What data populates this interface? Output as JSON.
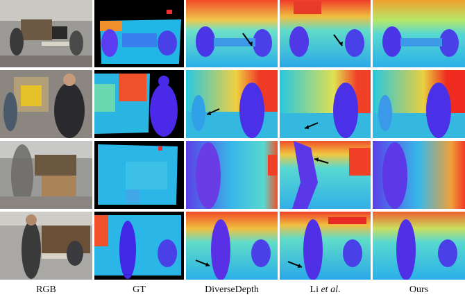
{
  "columns": {
    "rgb": "RGB",
    "gt": "GT",
    "diversedepth": "DiverseDepth",
    "li_prefix": "Li ",
    "li_italic": "et al",
    "li_suffix": ".",
    "ours": "Ours"
  },
  "colors": {
    "near": "#3a1ee0",
    "mid": "#1fb8e0",
    "far": "#f0301e",
    "background_black": "#000000"
  }
}
